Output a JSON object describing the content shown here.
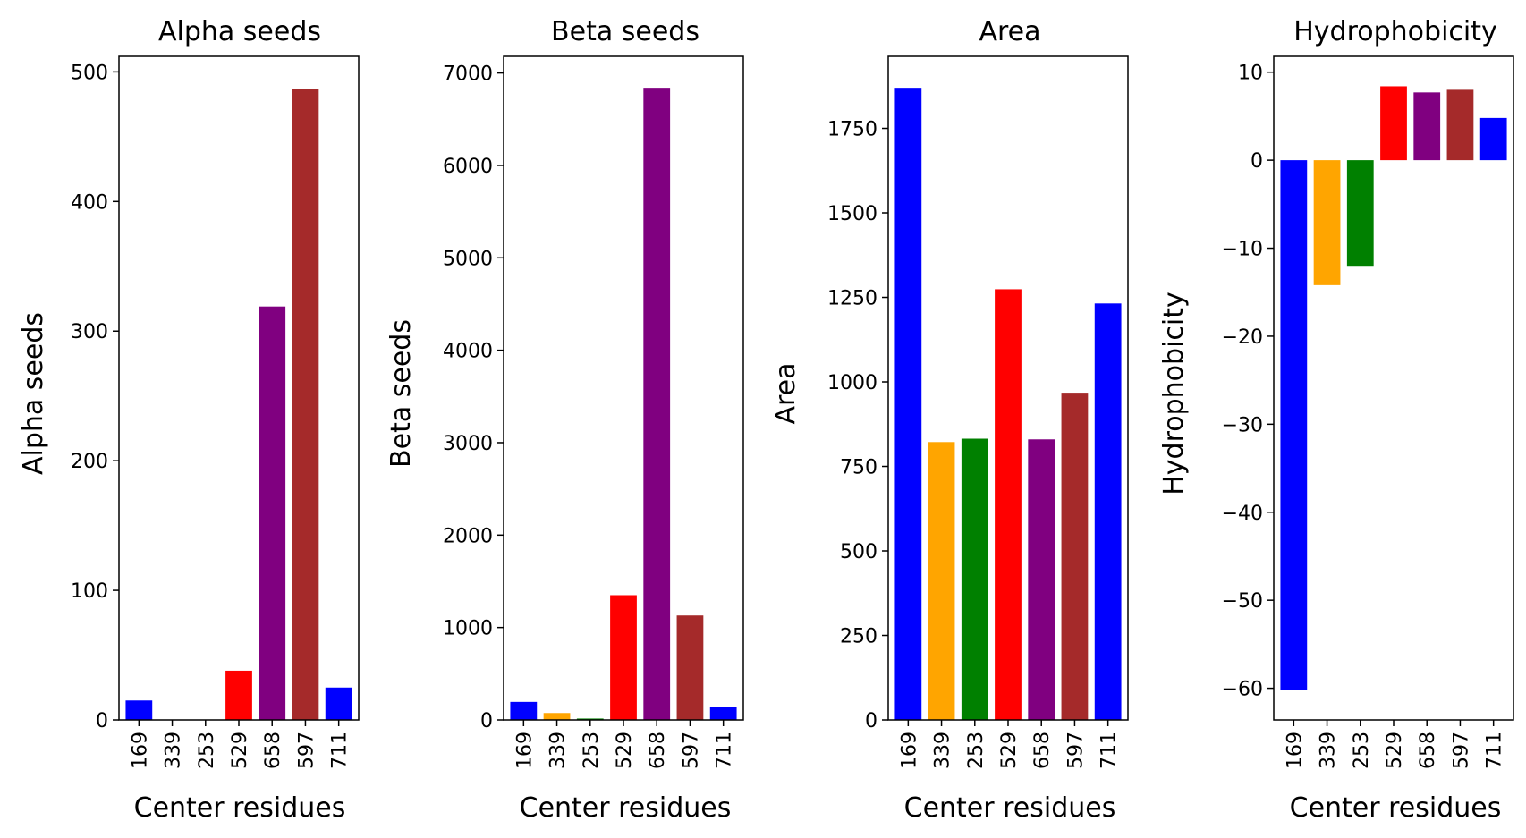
{
  "chart_data": [
    {
      "type": "bar",
      "title": "Alpha seeds",
      "xlabel": "Center residues",
      "ylabel": "Alpha seeds",
      "categories": [
        "169",
        "339",
        "253",
        "529",
        "658",
        "597",
        "711"
      ],
      "values": [
        15,
        0,
        0,
        38,
        319,
        487,
        25
      ],
      "colors": [
        "#0000ff",
        "#ffa500",
        "#008000",
        "#ff0000",
        "#800080",
        "#a52a2a",
        "#0000ff"
      ],
      "ylim": [
        0,
        512
      ],
      "yticks": [
        0,
        100,
        200,
        300,
        400,
        500
      ]
    },
    {
      "type": "bar",
      "title": "Beta seeds",
      "xlabel": "Center residues",
      "ylabel": "Beta seeds",
      "categories": [
        "169",
        "339",
        "253",
        "529",
        "658",
        "597",
        "711"
      ],
      "values": [
        195,
        75,
        15,
        1350,
        6840,
        1130,
        140
      ],
      "colors": [
        "#0000ff",
        "#ffa500",
        "#008000",
        "#ff0000",
        "#800080",
        "#a52a2a",
        "#0000ff"
      ],
      "ylim": [
        0,
        7180
      ],
      "yticks": [
        0,
        1000,
        2000,
        3000,
        4000,
        5000,
        6000,
        7000
      ]
    },
    {
      "type": "bar",
      "title": "Area",
      "xlabel": "Center residues",
      "ylabel": "Area",
      "categories": [
        "169",
        "339",
        "253",
        "529",
        "658",
        "597",
        "711"
      ],
      "values": [
        1870,
        822,
        832,
        1274,
        830,
        968,
        1232
      ],
      "colors": [
        "#0000ff",
        "#ffa500",
        "#008000",
        "#ff0000",
        "#800080",
        "#a52a2a",
        "#0000ff"
      ],
      "ylim": [
        0,
        1963
      ],
      "yticks": [
        0,
        250,
        500,
        750,
        1000,
        1250,
        1500,
        1750
      ]
    },
    {
      "type": "bar",
      "title": "Hydrophobicity",
      "xlabel": "Center residues",
      "ylabel": "Hydrophobicity",
      "categories": [
        "169",
        "339",
        "253",
        "529",
        "658",
        "597",
        "711"
      ],
      "values": [
        -60.2,
        -14.2,
        -12,
        8.4,
        7.7,
        8,
        4.8
      ],
      "colors": [
        "#0000ff",
        "#ffa500",
        "#008000",
        "#ff0000",
        "#800080",
        "#a52a2a",
        "#0000ff"
      ],
      "ylim": [
        -63.6,
        11.8
      ],
      "yticks": [
        -60,
        -50,
        -40,
        -30,
        -20,
        -10,
        0,
        10
      ]
    }
  ],
  "panels": [
    {
      "title": "Alpha seeds",
      "xlabel": "Center residues",
      "ylabel": "Alpha seeds"
    },
    {
      "title": "Beta seeds",
      "xlabel": "Center residues",
      "ylabel": "Beta seeds"
    },
    {
      "title": "Area",
      "xlabel": "Center residues",
      "ylabel": "Area"
    },
    {
      "title": "Hydrophobicity",
      "xlabel": "Center residues",
      "ylabel": "Hydrophobicity"
    }
  ]
}
